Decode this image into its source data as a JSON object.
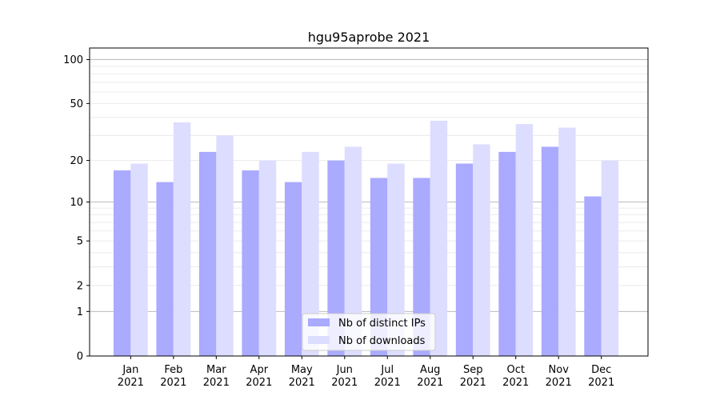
{
  "chart_data": {
    "type": "bar",
    "title": "hgu95aprobe 2021",
    "xlabel": "",
    "ylabel": "",
    "y_scale": "log(1+y)",
    "y_ticks": [
      0,
      1,
      2,
      5,
      10,
      20,
      50,
      100
    ],
    "y_tick_labels": [
      "0",
      "1",
      "2",
      "5",
      "10",
      "20",
      "50",
      "100"
    ],
    "ylim": [
      0,
      120
    ],
    "grid": "horizontal",
    "legend_position": "bottom-center",
    "categories": [
      {
        "month": "Jan",
        "year": "2021"
      },
      {
        "month": "Feb",
        "year": "2021"
      },
      {
        "month": "Mar",
        "year": "2021"
      },
      {
        "month": "Apr",
        "year": "2021"
      },
      {
        "month": "May",
        "year": "2021"
      },
      {
        "month": "Jun",
        "year": "2021"
      },
      {
        "month": "Jul",
        "year": "2021"
      },
      {
        "month": "Aug",
        "year": "2021"
      },
      {
        "month": "Sep",
        "year": "2021"
      },
      {
        "month": "Oct",
        "year": "2021"
      },
      {
        "month": "Nov",
        "year": "2021"
      },
      {
        "month": "Dec",
        "year": "2021"
      }
    ],
    "series": [
      {
        "name": "Nb of distinct IPs",
        "color": "#aaaaff",
        "values": [
          17,
          14,
          23,
          17,
          14,
          20,
          15,
          15,
          19,
          23,
          25,
          11
        ]
      },
      {
        "name": "Nb of downloads",
        "color": "#ddddff",
        "values": [
          19,
          37,
          30,
          20,
          23,
          25,
          19,
          38,
          26,
          36,
          34,
          20
        ]
      }
    ]
  }
}
